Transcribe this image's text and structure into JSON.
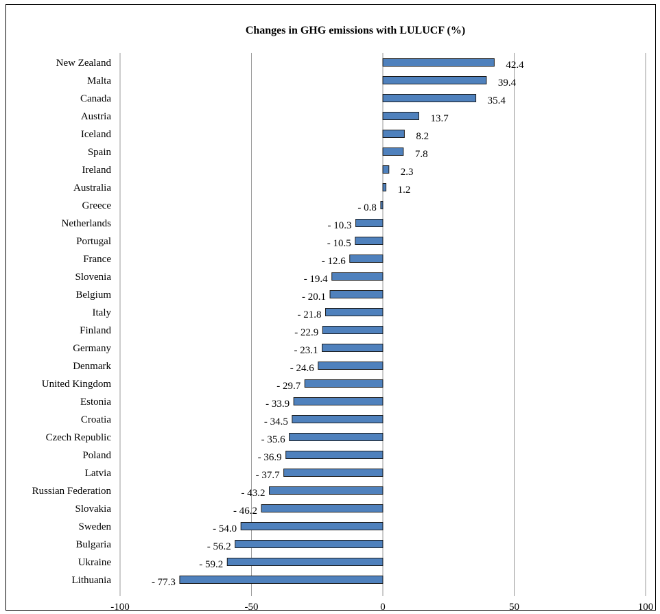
{
  "chart_data": {
    "type": "bar",
    "orientation": "horizontal",
    "title": "Changes in GHG emissions with LULUCF (%)",
    "xlabel": "",
    "ylabel": "",
    "xlim": [
      -100,
      100
    ],
    "x_ticks": [
      -100,
      -50,
      0,
      50,
      100
    ],
    "grid": true,
    "bar_color": "#4f81bd",
    "categories": [
      "New Zealand",
      "Malta",
      "Canada",
      "Austria",
      "Iceland",
      "Spain",
      "Ireland",
      "Australia",
      "Greece",
      "Netherlands",
      "Portugal",
      "France",
      "Slovenia",
      "Belgium",
      "Italy",
      "Finland",
      "Germany",
      "Denmark",
      "United Kingdom",
      "Estonia",
      "Croatia",
      "Czech Republic",
      "Poland",
      "Latvia",
      "Russian Federation",
      "Slovakia",
      "Sweden",
      "Bulgaria",
      "Ukraine",
      "Lithuania"
    ],
    "values": [
      42.4,
      39.4,
      35.4,
      13.7,
      8.2,
      7.8,
      2.3,
      1.2,
      -0.8,
      -10.3,
      -10.5,
      -12.6,
      -19.4,
      -20.1,
      -21.8,
      -22.9,
      -23.1,
      -24.6,
      -29.7,
      -33.9,
      -34.5,
      -35.6,
      -36.9,
      -37.7,
      -43.2,
      -46.2,
      -54.0,
      -56.2,
      -59.2,
      -77.3
    ],
    "value_labels": [
      "42.4",
      "39.4",
      "35.4",
      "13.7",
      "8.2",
      "7.8",
      "2.3",
      "1.2",
      "- 0.8",
      "- 10.3",
      "- 10.5",
      "- 12.6",
      "- 19.4",
      "- 20.1",
      "- 21.8",
      "- 22.9",
      "- 23.1",
      "- 24.6",
      "- 29.7",
      "- 33.9",
      "- 34.5",
      "- 35.6",
      "- 36.9",
      "- 37.7",
      "- 43.2",
      "- 46.2",
      "- 54.0",
      "- 56.2",
      "- 59.2",
      "- 77.3"
    ]
  }
}
